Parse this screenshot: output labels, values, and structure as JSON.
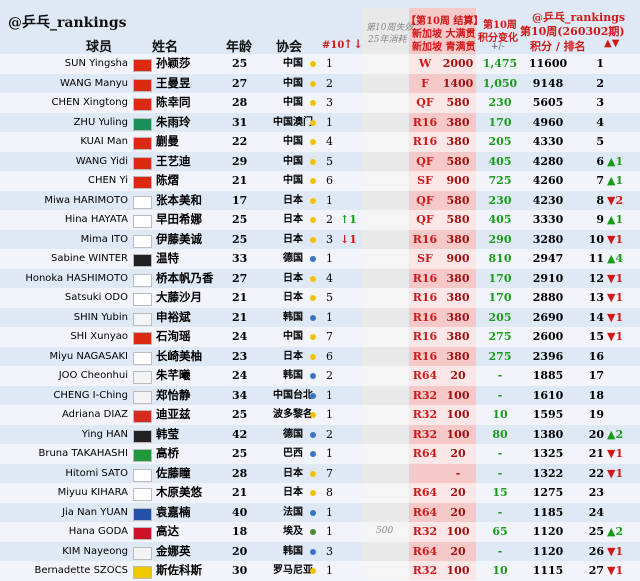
{
  "header": {
    "handle": "@乒乓_rankings",
    "player": "球员",
    "name": "姓名",
    "age": "年龄",
    "assoc": "协会",
    "week": "#10",
    "move": "↑↓",
    "expired_1": "第10周失效",
    "expired_2": "25年消耗",
    "settle": "【第10周 结算】",
    "event_1": "新加坡 大满贯",
    "event_2": "新加坡 青满贯",
    "change_1": "第10周",
    "change_2": "积分变化",
    "change_3": "+/-",
    "right_handle": "@乒乓_rankings",
    "issue": "第10周(260302期)",
    "points_rank": "积分 / 排名",
    "updown": "▲▼"
  },
  "rows": [
    {
      "player": "SUN Yingsha",
      "name": "孙颖莎",
      "age": 25,
      "assoc": "中国",
      "assoc_rank": 1,
      "dot": "#f2c200",
      "flag": "#de2910",
      "tier": "W",
      "points": "2000",
      "change": "1,475",
      "total": 11600,
      "rank": 1
    },
    {
      "player": "WANG Manyu",
      "name": "王曼昱",
      "age": 27,
      "assoc": "中国",
      "assoc_rank": 2,
      "dot": "#f2c200",
      "flag": "#de2910",
      "tier": "F",
      "points": "1400",
      "change": "1,050",
      "total": 9148,
      "rank": 2
    },
    {
      "player": "CHEN Xingtong",
      "name": "陈幸同",
      "age": 28,
      "assoc": "中国",
      "assoc_rank": 3,
      "dot": "#f2c200",
      "flag": "#de2910",
      "tier": "QF",
      "points": "580",
      "change": "230",
      "total": 5605,
      "rank": 3
    },
    {
      "player": "ZHU Yuling",
      "name": "朱雨玲",
      "age": 31,
      "assoc": "中国澳门",
      "assoc_rank": 1,
      "dot": "#f2c200",
      "flag": "#1a8f5a",
      "tier": "R16",
      "points": "380",
      "change": "170",
      "total": 4960,
      "rank": 4
    },
    {
      "player": "KUAI Man",
      "name": "蒯曼",
      "age": 22,
      "assoc": "中国",
      "assoc_rank": 4,
      "dot": "#f2c200",
      "flag": "#de2910",
      "tier": "R16",
      "points": "380",
      "change": "205",
      "total": 4330,
      "rank": 5
    },
    {
      "player": "WANG Yidi",
      "name": "王艺迪",
      "age": 29,
      "assoc": "中国",
      "assoc_rank": 5,
      "dot": "#f2c200",
      "flag": "#de2910",
      "tier": "QF",
      "points": "580",
      "change": "405",
      "total": 4280,
      "rank": 6,
      "rank_change": "▲1",
      "rank_change_color": "#1a9a1a"
    },
    {
      "player": "CHEN Yi",
      "name": "陈熠",
      "age": 21,
      "assoc": "中国",
      "assoc_rank": 6,
      "dot": "#f2c200",
      "flag": "#de2910",
      "tier": "SF",
      "points": "900",
      "change": "725",
      "total": 4260,
      "rank": 7,
      "rank_change": "▲1",
      "rank_change_color": "#1a9a1a"
    },
    {
      "player": "Miwa HARIMOTO",
      "name": "张本美和",
      "age": 17,
      "assoc": "日本",
      "assoc_rank": 1,
      "dot": "#f2c200",
      "flag": "#ffffff",
      "tier": "QF",
      "points": "580",
      "change": "230",
      "total": 4230,
      "rank": 8,
      "rank_change": "▼2",
      "rank_change_color": "#d01818"
    },
    {
      "player": "Hina HAYATA",
      "name": "早田希娜",
      "age": 25,
      "assoc": "日本",
      "assoc_rank": 2,
      "dot": "#f2c200",
      "flag": "#ffffff",
      "move": "↑1",
      "move_color": "#1a9a1a",
      "tier": "QF",
      "points": "580",
      "change": "405",
      "total": 3330,
      "rank": 9,
      "rank_change": "▲1",
      "rank_change_color": "#1a9a1a"
    },
    {
      "player": "Mima ITO",
      "name": "伊藤美诚",
      "age": 25,
      "assoc": "日本",
      "assoc_rank": 3,
      "dot": "#f2c200",
      "flag": "#ffffff",
      "move": "↓1",
      "move_color": "#d01818",
      "tier": "R16",
      "points": "380",
      "change": "290",
      "total": 3280,
      "rank": 10,
      "rank_change": "▼1",
      "rank_change_color": "#d01818"
    },
    {
      "player": "Sabine WINTER",
      "name": "温特",
      "age": 33,
      "assoc": "德国",
      "assoc_rank": 1,
      "dot": "#3a74c8",
      "flag": "#222222",
      "tier": "SF",
      "points": "900",
      "change": "810",
      "total": 2947,
      "rank": 11,
      "rank_change": "▲4",
      "rank_change_color": "#1a9a1a"
    },
    {
      "player": "Honoka HASHIMOTO",
      "name": "桥本帆乃香",
      "age": 27,
      "assoc": "日本",
      "assoc_rank": 4,
      "dot": "#f2c200",
      "flag": "#ffffff",
      "tier": "R16",
      "points": "380",
      "change": "170",
      "total": 2910,
      "rank": 12,
      "rank_change": "▼1",
      "rank_change_color": "#d01818"
    },
    {
      "player": "Satsuki ODO",
      "name": "大藤沙月",
      "age": 21,
      "assoc": "日本",
      "assoc_rank": 5,
      "dot": "#f2c200",
      "flag": "#ffffff",
      "tier": "R16",
      "points": "380",
      "change": "170",
      "total": 2880,
      "rank": 13,
      "rank_change": "▼1",
      "rank_change_color": "#d01818"
    },
    {
      "player": "SHIN Yubin",
      "name": "申裕斌",
      "age": 21,
      "assoc": "韩国",
      "assoc_rank": 1,
      "dot": "#3a74c8",
      "flag": "#f4f4f4",
      "tier": "R16",
      "points": "380",
      "change": "205",
      "total": 2690,
      "rank": 14,
      "rank_change": "▼1",
      "rank_change_color": "#d01818"
    },
    {
      "player": "SHI Xunyao",
      "name": "石洵瑶",
      "age": 24,
      "assoc": "中国",
      "assoc_rank": 7,
      "dot": "#f2c200",
      "flag": "#de2910",
      "tier": "R16",
      "points": "380",
      "change": "275",
      "total": 2600,
      "rank": 15,
      "rank_change": "▼1",
      "rank_change_color": "#d01818"
    },
    {
      "player": "Miyu NAGASAKI",
      "name": "长崎美柚",
      "age": 23,
      "assoc": "日本",
      "assoc_rank": 6,
      "dot": "#f2c200",
      "flag": "#ffffff",
      "tier": "R16",
      "points": "380",
      "change": "275",
      "total": 2396,
      "rank": 16
    },
    {
      "player": "JOO Cheonhui",
      "name": "朱芊曦",
      "age": 24,
      "assoc": "韩国",
      "assoc_rank": 2,
      "dot": "#3a74c8",
      "flag": "#f4f4f4",
      "tier": "R64",
      "points": "20",
      "change": "-",
      "total": 1885,
      "rank": 17
    },
    {
      "player": "CHENG I-Ching",
      "name": "郑怡静",
      "age": 34,
      "assoc": "中国台北",
      "assoc_rank": 1,
      "dot": "#3a74c8",
      "flag": "#f4f4f4",
      "tier": "R32",
      "points": "100",
      "change": "-",
      "total": 1610,
      "rank": 18
    },
    {
      "player": "Adriana DIAZ",
      "name": "迪亚兹",
      "age": 25,
      "assoc": "波多黎各",
      "assoc_rank": 1,
      "dot": "#f2c200",
      "flag": "#d52b1e",
      "tier": "R32",
      "points": "100",
      "change": "10",
      "total": 1595,
      "rank": 19
    },
    {
      "player": "Ying HAN",
      "name": "韩莹",
      "age": 42,
      "assoc": "德国",
      "assoc_rank": 2,
      "dot": "#3a74c8",
      "flag": "#222222",
      "tier": "R32",
      "points": "100",
      "change": "80",
      "total": 1380,
      "rank": 20,
      "rank_change": "▲2",
      "rank_change_color": "#1a9a1a"
    },
    {
      "player": "Bruna TAKAHASHI",
      "name": "高桥",
      "age": 25,
      "assoc": "巴西",
      "assoc_rank": 1,
      "dot": "#3a74c8",
      "flag": "#1e9a3a",
      "tier": "R64",
      "points": "20",
      "change": "-",
      "total": 1325,
      "rank": 21,
      "rank_change": "▼1",
      "rank_change_color": "#d01818"
    },
    {
      "player": "Hitomi SATO",
      "name": "佐藤瞳",
      "age": 28,
      "assoc": "日本",
      "assoc_rank": 7,
      "dot": "#f2c200",
      "flag": "#ffffff",
      "points": "-",
      "change": "-",
      "total": 1322,
      "rank": 22,
      "rank_change": "▼1",
      "rank_change_color": "#d01818"
    },
    {
      "player": "Miyuu KIHARA",
      "name": "木原美悠",
      "age": 21,
      "assoc": "日本",
      "assoc_rank": 8,
      "dot": "#f2c200",
      "flag": "#ffffff",
      "tier": "R64",
      "points": "20",
      "change": "15",
      "total": 1275,
      "rank": 23
    },
    {
      "player": "Jia Nan YUAN",
      "name": "袁嘉楠",
      "age": 40,
      "assoc": "法国",
      "assoc_rank": 1,
      "dot": "#3a74c8",
      "flag": "#2451a8",
      "tier": "R64",
      "points": "20",
      "change": "-",
      "total": 1185,
      "rank": 24
    },
    {
      "player": "Hana GODA",
      "name": "高达",
      "age": 18,
      "assoc": "埃及",
      "assoc_rank": 1,
      "dot": "#4a8a2a",
      "flag": "#ce1126",
      "expired": "500",
      "tier": "R32",
      "points": "100",
      "change": "65",
      "total": 1120,
      "rank": 25,
      "rank_change": "▲2",
      "rank_change_color": "#1a9a1a"
    },
    {
      "player": "KIM Nayeong",
      "name": "金娜英",
      "age": 20,
      "assoc": "韩国",
      "assoc_rank": 3,
      "dot": "#3a74c8",
      "flag": "#f4f4f4",
      "tier": "R64",
      "points": "20",
      "change": "-",
      "total": 1120,
      "rank": 26,
      "rank_change": "▼1",
      "rank_change_color": "#d01818"
    },
    {
      "player": "Bernadette SZOCS",
      "name": "斯佐科斯",
      "age": 30,
      "assoc": "罗马尼亚",
      "assoc_rank": 1,
      "dot": "#f2c200",
      "flag": "#f2c800",
      "tier": "R32",
      "points": "100",
      "change": "10",
      "total": 1115,
      "rank": 27,
      "rank_change": "▼1",
      "rank_change_color": "#d01818"
    }
  ]
}
